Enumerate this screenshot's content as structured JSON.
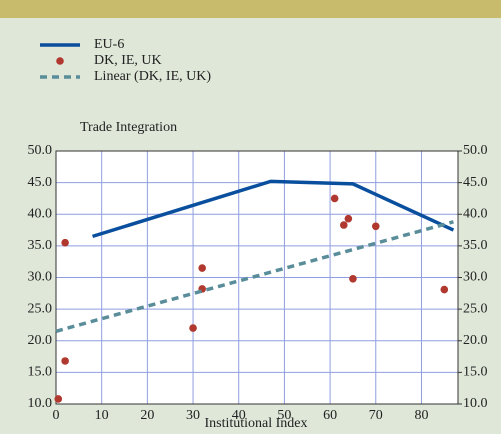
{
  "chart_data": {
    "type": "line",
    "y_title": "Trade Integration",
    "x_title": "Institutional Index",
    "xlim": [
      0,
      88
    ],
    "xticks": [
      0,
      10,
      20,
      30,
      40,
      50,
      60,
      70,
      80
    ],
    "ylim": [
      10,
      50
    ],
    "yticks": [
      {
        "value": 10,
        "label": "10.0"
      },
      {
        "value": 15,
        "label": "15.0"
      },
      {
        "value": 20,
        "label": "20.0"
      },
      {
        "value": 25,
        "label": "25.0"
      },
      {
        "value": 30,
        "label": "30.0"
      },
      {
        "value": 35,
        "label": "35.0"
      },
      {
        "value": 40,
        "label": "40.0"
      },
      {
        "value": 45,
        "label": "45.0"
      },
      {
        "value": 50,
        "label": "50.0"
      }
    ],
    "y2lim": [
      10,
      50
    ],
    "y2ticks": [
      {
        "value": 10,
        "label": "10.0"
      },
      {
        "value": 15,
        "label": "15.0"
      },
      {
        "value": 20,
        "label": "20.0"
      },
      {
        "value": 25,
        "label": "25.0"
      },
      {
        "value": 30,
        "label": "30.0"
      },
      {
        "value": 35,
        "label": "35.0"
      },
      {
        "value": 40,
        "label": "40.0"
      },
      {
        "value": 45,
        "label": "45.0"
      },
      {
        "value": 50,
        "label": "50.0"
      }
    ],
    "grid": true,
    "legend": "top-left",
    "series": [
      {
        "name": "EU-6",
        "color": "#0a4f9e",
        "style": "solid",
        "x": [
          8,
          47,
          65,
          87
        ],
        "values": [
          36.5,
          45.2,
          44.8,
          37.5
        ]
      },
      {
        "name": "DK, IE, UK",
        "color": "#b0382e",
        "style": "markers",
        "x": [
          0.5,
          2,
          2,
          30,
          32,
          32,
          61,
          63,
          64,
          65,
          70,
          85
        ],
        "values": [
          10.8,
          35.5,
          16.8,
          22,
          31.5,
          28.2,
          42.5,
          38.3,
          39.3,
          29.8,
          38.1,
          28.1
        ]
      },
      {
        "name": "Linear (DK, IE, UK)",
        "color": "#5a8d9a",
        "style": "dashed",
        "x": [
          0,
          87
        ],
        "values": [
          21.5,
          38.8
        ]
      }
    ]
  }
}
